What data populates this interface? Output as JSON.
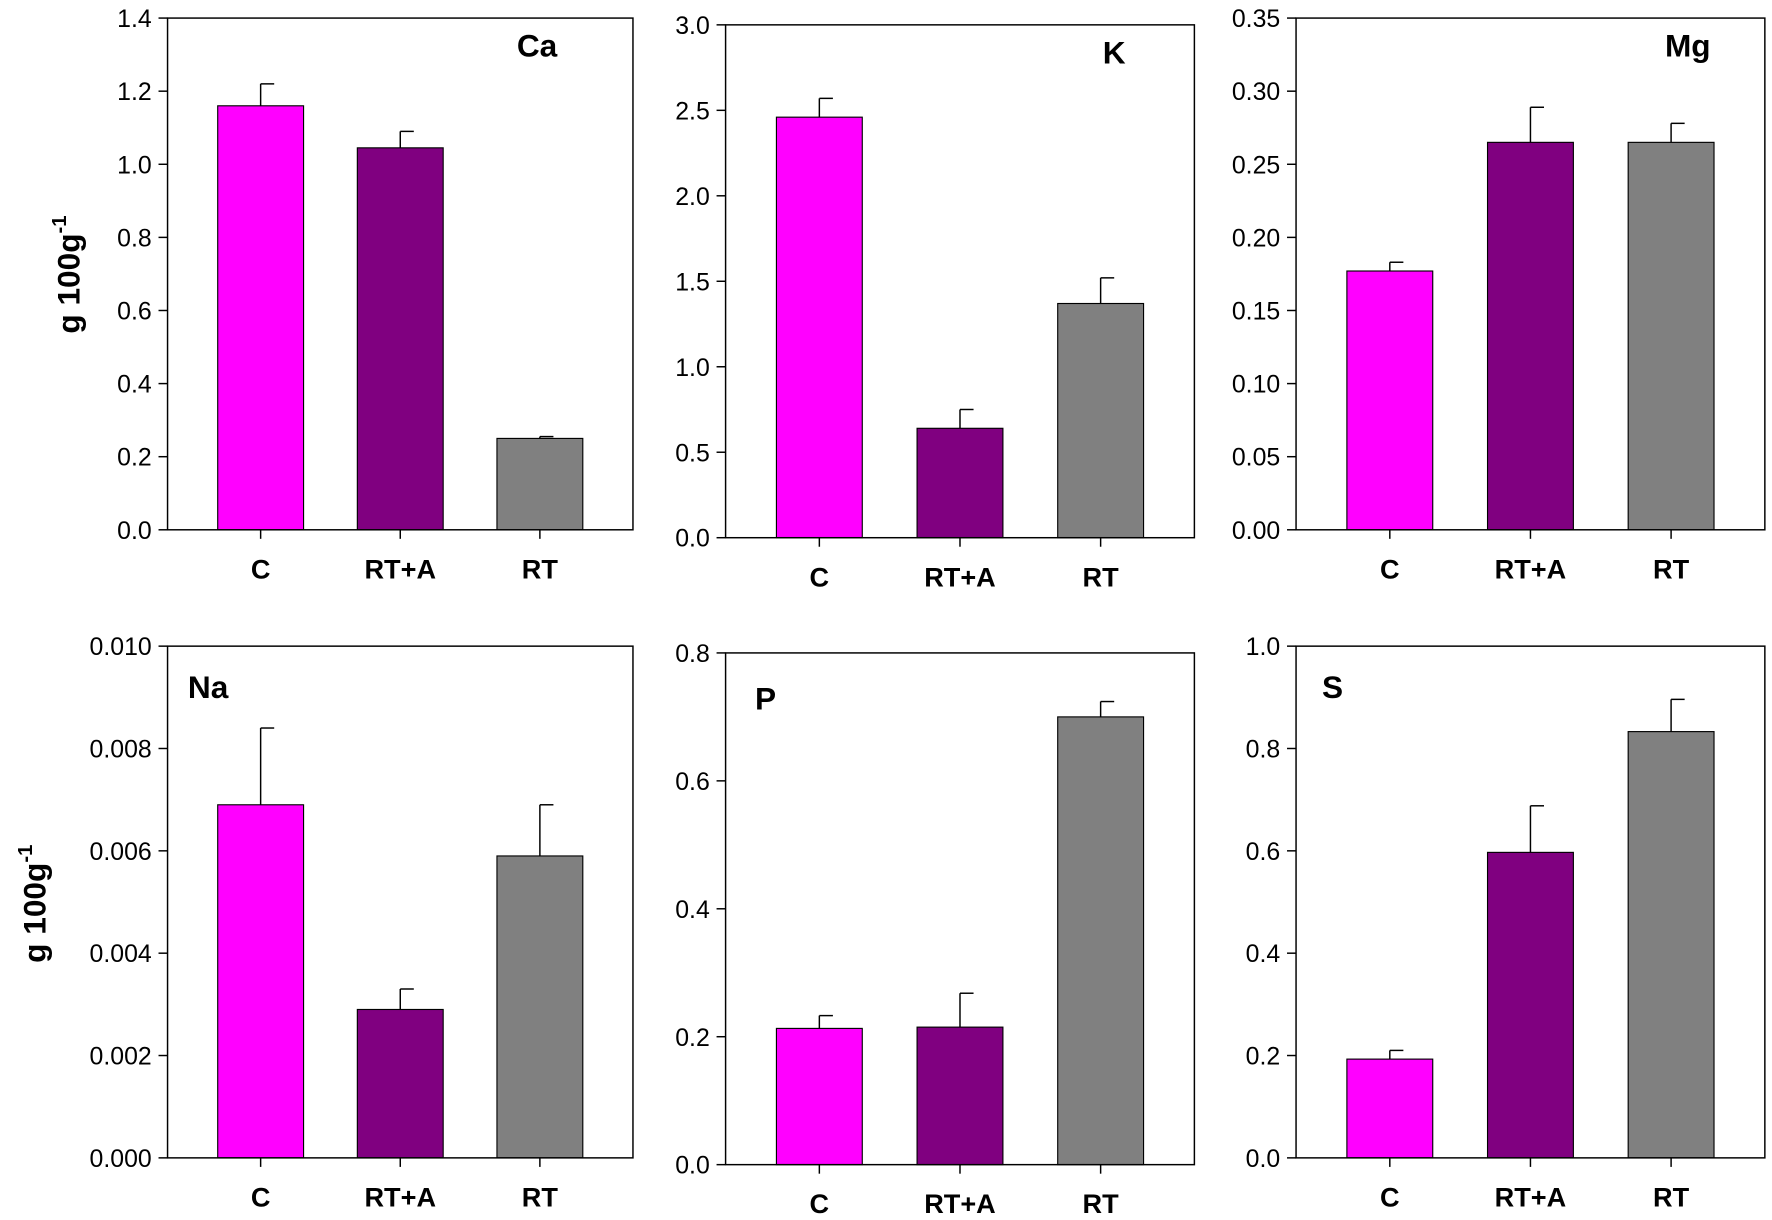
{
  "chart_data": [
    {
      "type": "bar",
      "title": "Ca",
      "ylabel": "g 100g",
      "ylabel_sup": "-1",
      "categories": [
        "C",
        "RT+A",
        "RT"
      ],
      "values": [
        1.16,
        1.045,
        0.25
      ],
      "error_upper": [
        1.22,
        1.09,
        0.255
      ],
      "ylim": [
        0,
        1.4
      ],
      "yticks": [
        "0.0",
        "0.2",
        "0.4",
        "0.6",
        "0.8",
        "1.0",
        "1.2",
        "1.4"
      ],
      "grid": false
    },
    {
      "type": "bar",
      "title": "K",
      "ylabel": "",
      "categories": [
        "C",
        "RT+A",
        "RT"
      ],
      "values": [
        2.46,
        0.64,
        1.37
      ],
      "error_upper": [
        2.57,
        0.75,
        1.52
      ],
      "ylim": [
        0,
        3.0
      ],
      "yticks": [
        "0.0",
        "0.5",
        "1.0",
        "1.5",
        "2.0",
        "2.5",
        "3.0"
      ],
      "grid": false
    },
    {
      "type": "bar",
      "title": "Mg",
      "ylabel": "",
      "categories": [
        "C",
        "RT+A",
        "RT"
      ],
      "values": [
        0.177,
        0.265,
        0.265
      ],
      "error_upper": [
        0.183,
        0.289,
        0.278
      ],
      "ylim": [
        0,
        0.35
      ],
      "yticks": [
        "0.00",
        "0.05",
        "0.10",
        "0.15",
        "0.20",
        "0.25",
        "0.30",
        "0.35"
      ],
      "grid": false
    },
    {
      "type": "bar",
      "title": "Na",
      "ylabel": "g 100g",
      "ylabel_sup": "-1",
      "categories": [
        "C",
        "RT+A",
        "RT"
      ],
      "values": [
        0.0069,
        0.0029,
        0.0059
      ],
      "error_upper": [
        0.0084,
        0.0033,
        0.0069
      ],
      "ylim": [
        0,
        0.01
      ],
      "yticks": [
        "0.000",
        "0.002",
        "0.004",
        "0.006",
        "0.008",
        "0.010"
      ],
      "grid": false
    },
    {
      "type": "bar",
      "title": "P",
      "ylabel": "",
      "categories": [
        "C",
        "RT+A",
        "RT"
      ],
      "values": [
        0.213,
        0.215,
        0.7
      ],
      "error_upper": [
        0.233,
        0.268,
        0.724
      ],
      "ylim": [
        0,
        0.8
      ],
      "yticks": [
        "0.0",
        "0.2",
        "0.4",
        "0.6",
        "0.8"
      ],
      "grid": false
    },
    {
      "type": "bar",
      "title": "S",
      "ylabel": "",
      "categories": [
        "C",
        "RT+A",
        "RT"
      ],
      "values": [
        0.193,
        0.597,
        0.833
      ],
      "error_upper": [
        0.21,
        0.688,
        0.896
      ],
      "ylim": [
        0,
        1.0
      ],
      "yticks": [
        "0.0",
        "0.2",
        "0.4",
        "0.6",
        "0.8",
        "1.0"
      ],
      "grid": false
    }
  ],
  "colors": {
    "C": "#ff00ff",
    "RT+A": "#800080",
    "RT": "#808080"
  }
}
